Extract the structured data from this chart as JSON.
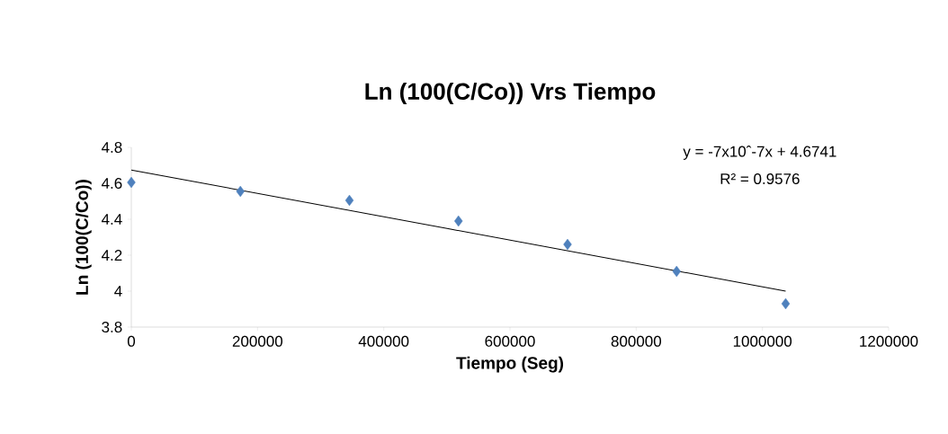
{
  "chart_data": {
    "type": "scatter",
    "title": "Ln (100(C/Co)) Vrs Tiempo",
    "xlabel": "Tiempo (Seg)",
    "ylabel": "Ln (100(C/Co))",
    "annotations": [
      "y = -7x10ˆ-7x + 4.6741",
      "R² = 0.9576"
    ],
    "x": [
      0,
      172800,
      345600,
      518400,
      691200,
      864000,
      1036800
    ],
    "series": [
      {
        "color": "#4f81bd",
        "marker": "diamond",
        "values": [
          4.605,
          4.555,
          4.505,
          4.39,
          4.26,
          4.11,
          3.93
        ]
      },
      {
        "type": "line",
        "color": "#000000",
        "marker": "none",
        "line_style": "solid",
        "x": [
          0,
          1036800
        ],
        "values": [
          4.674,
          4.0
        ]
      }
    ],
    "xlim": [
      0,
      1200000
    ],
    "xticks": [
      0,
      200000,
      400000,
      600000,
      800000,
      1000000,
      1200000
    ],
    "ylim": [
      3.8,
      4.8
    ],
    "yticks": [
      3.8,
      4,
      4.2,
      4.4,
      4.6,
      4.8
    ],
    "grid": false
  }
}
